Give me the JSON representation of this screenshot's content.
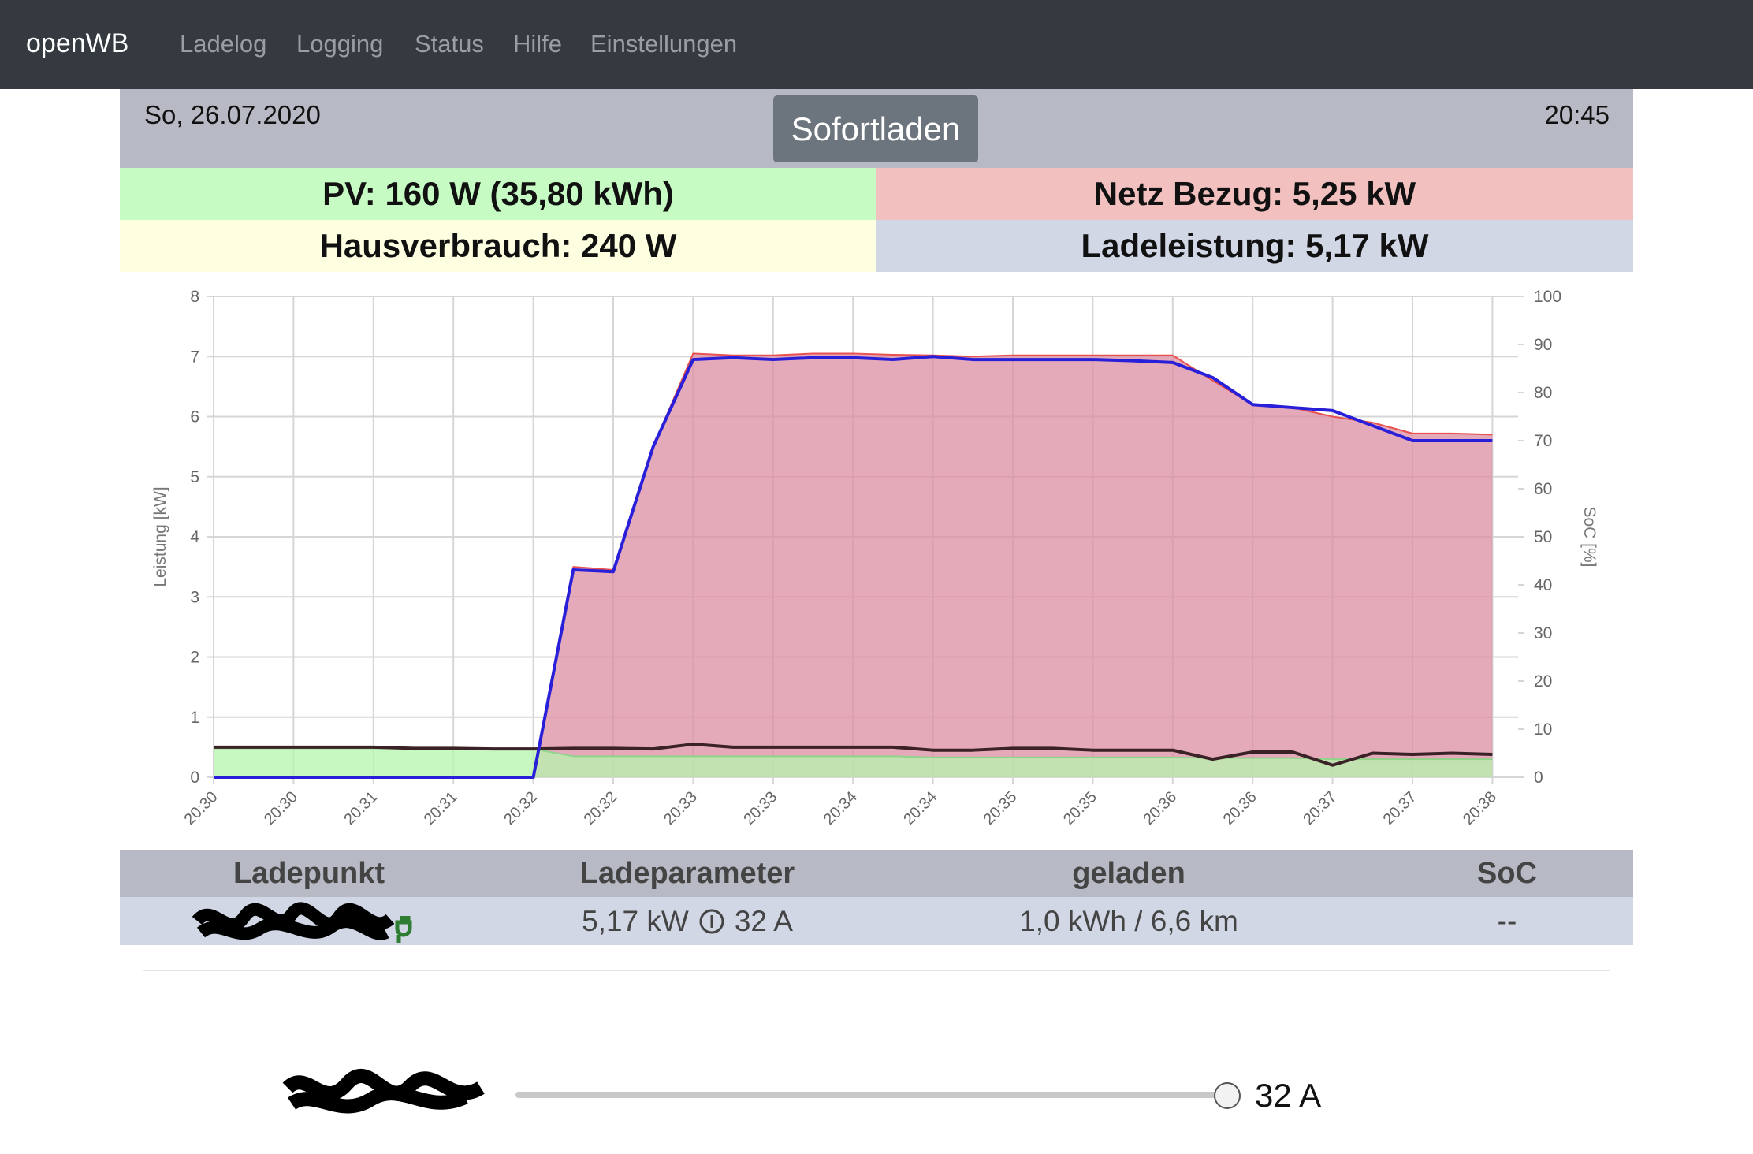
{
  "navbar": {
    "brand": "openWB",
    "links": [
      "Ladelog",
      "Logging",
      "Status",
      "Hilfe",
      "Einstellungen"
    ]
  },
  "header": {
    "date": "So, 26.07.2020",
    "button": "Sofortladen",
    "time": "20:45"
  },
  "summary": {
    "pv": "PV: 160 W (35,80 kWh)",
    "grid": "Netz Bezug: 5,25 kW",
    "house": "Hausverbrauch: 240 W",
    "charge": "Ladeleistung: 5,17 kW"
  },
  "chart_data": {
    "type": "line",
    "ylabel": "Leistung [kW]",
    "y2label": "SoC [%]",
    "ylim": [
      0,
      8
    ],
    "yticks": [
      0,
      1,
      2,
      3,
      4,
      5,
      6,
      7,
      8
    ],
    "y2lim": [
      0,
      100
    ],
    "y2ticks": [
      0,
      10,
      20,
      30,
      40,
      50,
      60,
      70,
      80,
      90,
      100
    ],
    "grid": true,
    "categories": [
      "20:30",
      null,
      "20:30",
      null,
      "20:31",
      null,
      "20:31",
      null,
      "20:32",
      null,
      "20:32",
      null,
      "20:33",
      null,
      "20:33",
      null,
      "20:34",
      null,
      "20:34",
      null,
      "20:35",
      null,
      "20:35",
      null,
      "20:36",
      null,
      "20:36",
      null,
      "20:37",
      null,
      "20:37",
      null,
      "20:38"
    ],
    "series": [
      {
        "color": "#e8514f",
        "fill": "#dc8ea3",
        "values": [
          0,
          0,
          0,
          0,
          0,
          0,
          0,
          0,
          0,
          3.5,
          3.45,
          5.5,
          7.05,
          7.02,
          7.02,
          7.05,
          7.05,
          7.03,
          7.02,
          7.0,
          7.02,
          7.02,
          7.02,
          7.02,
          7.02,
          6.6,
          6.2,
          6.15,
          6.0,
          5.9,
          5.72,
          5.72,
          5.7
        ]
      },
      {
        "color": "#8fd48a",
        "fill": "#b6f5ae",
        "values": [
          0.48,
          0.48,
          0.48,
          0.48,
          0.48,
          0.47,
          0.47,
          0.47,
          0.47,
          0.35,
          0.35,
          0.35,
          0.35,
          0.35,
          0.35,
          0.35,
          0.35,
          0.35,
          0.33,
          0.33,
          0.33,
          0.33,
          0.33,
          0.33,
          0.33,
          0.32,
          0.32,
          0.32,
          0.3,
          0.3,
          0.3,
          0.3,
          0.3
        ]
      },
      {
        "color": "#3a2226",
        "values": [
          0.5,
          0.5,
          0.5,
          0.5,
          0.5,
          0.48,
          0.48,
          0.47,
          0.47,
          0.48,
          0.48,
          0.47,
          0.55,
          0.5,
          0.5,
          0.5,
          0.5,
          0.5,
          0.45,
          0.45,
          0.48,
          0.48,
          0.45,
          0.45,
          0.45,
          0.3,
          0.42,
          0.42,
          0.2,
          0.4,
          0.38,
          0.4,
          0.38
        ]
      },
      {
        "color": "#2a1fd8",
        "values": [
          0,
          0,
          0,
          0,
          0,
          0,
          0,
          0,
          0,
          3.45,
          3.42,
          5.5,
          6.95,
          6.98,
          6.95,
          6.98,
          6.98,
          6.95,
          7.0,
          6.95,
          6.95,
          6.95,
          6.95,
          6.93,
          6.9,
          6.65,
          6.2,
          6.15,
          6.1,
          5.85,
          5.6,
          5.6,
          5.6
        ]
      }
    ]
  },
  "table": {
    "headers": [
      "Ladepunkt",
      "Ladeparameter",
      "geladen",
      "SoC"
    ],
    "rows": [
      {
        "power": "5,17 kW",
        "current": "32 A",
        "charged": "1,0 kWh / 6,6 km",
        "soc": "--"
      }
    ]
  },
  "slider": {
    "value_label": "32 A"
  }
}
